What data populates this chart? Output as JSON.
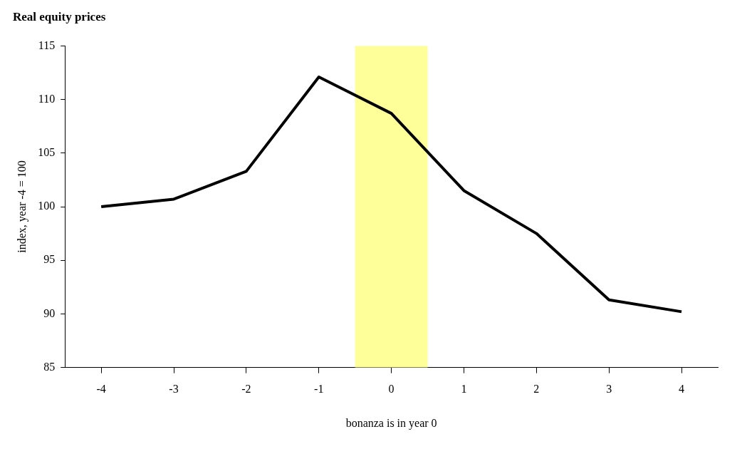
{
  "chart_data": {
    "type": "line",
    "title": "Real equity prices",
    "xlabel": "bonanza is in year 0",
    "ylabel": "index, year -4 = 100",
    "x": [
      -4,
      -3,
      -2,
      -1,
      0,
      1,
      2,
      3,
      4
    ],
    "series": [
      {
        "color": "#000000",
        "values": [
          100,
          100.7,
          103.3,
          112.1,
          108.7,
          101.5,
          97.5,
          91.3,
          90.2
        ]
      }
    ],
    "xlim": [
      -4.5,
      4.5
    ],
    "xticks": [
      -4,
      -3,
      -2,
      -1,
      0,
      1,
      2,
      3,
      4
    ],
    "ylim": [
      85,
      115
    ],
    "yticks": [
      85,
      90,
      95,
      100,
      105,
      110,
      115
    ],
    "bands": [
      {
        "axis": "x",
        "from": -0.5,
        "to": 0.5,
        "color": "#ffff99"
      }
    ],
    "grid": false,
    "legend": false,
    "marker": "none",
    "line_style": "solid"
  }
}
